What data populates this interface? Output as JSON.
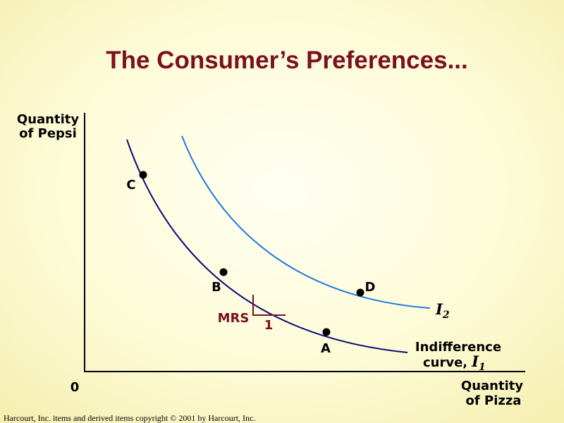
{
  "header": {
    "title": "The Consumer’s Preferences..."
  },
  "axes": {
    "y_label": [
      "Quantity",
      "of Pepsi"
    ],
    "x_label": [
      "Quantity",
      "of Pizza"
    ],
    "origin": "0"
  },
  "points": {
    "a": "A",
    "b": "B",
    "c": "C",
    "d": "D"
  },
  "mrs": {
    "label": "MRS",
    "run": "1"
  },
  "curves": [
    {
      "text": [
        "Indifference",
        "curve,"
      ],
      "symbol": "I",
      "subscript": "1"
    },
    {
      "symbol": "I",
      "subscript": "2"
    }
  ],
  "footer": "Harcourt, Inc. items and derived items copyright © 2001  by Harcourt, Inc."
}
